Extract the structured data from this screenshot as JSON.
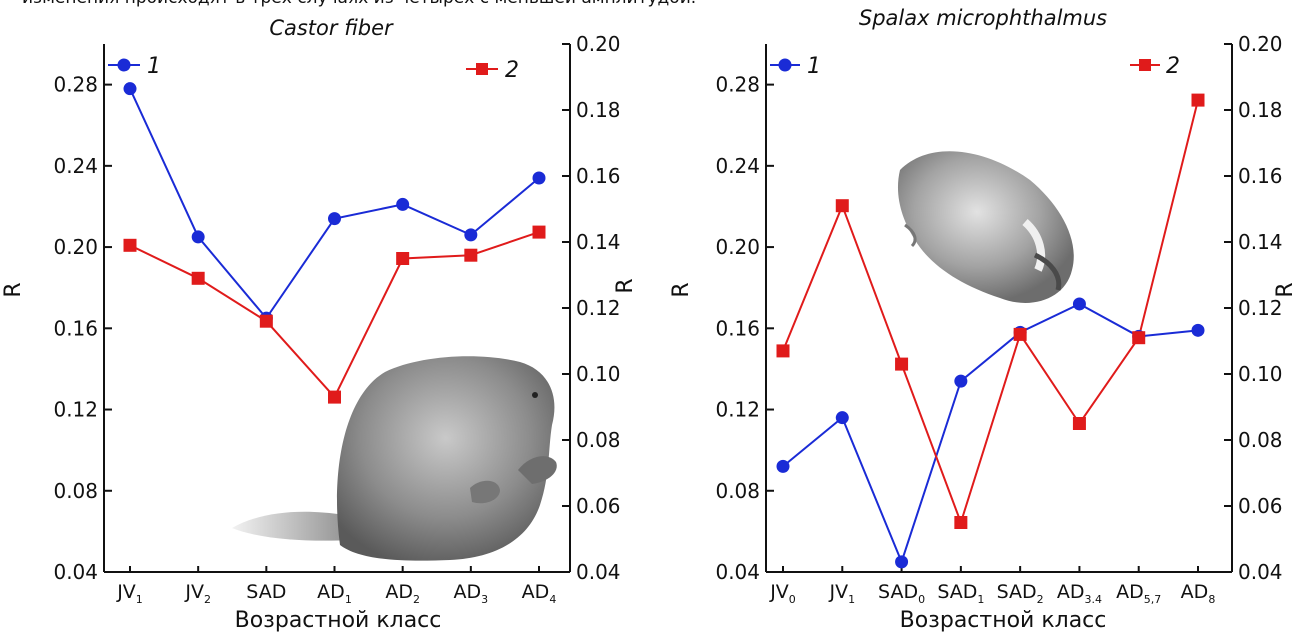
{
  "caption": "изменения происходят в трех случаях из четырех с меньшей амплитудой.",
  "colors": {
    "series1": "#1a2bd6",
    "series2": "#e01b1b",
    "axis": "#111111"
  },
  "chart_data": [
    {
      "type": "line",
      "title": "Castor fiber",
      "xlabel": "Возрастной класс",
      "ylabel": "R",
      "y2label": "R",
      "categories": [
        {
          "base": "JV",
          "sub": "1"
        },
        {
          "base": "JV",
          "sub": "2"
        },
        {
          "base": "SAD",
          "sub": ""
        },
        {
          "base": "AD",
          "sub": "1"
        },
        {
          "base": "AD",
          "sub": "2"
        },
        {
          "base": "AD",
          "sub": "3"
        },
        {
          "base": "AD",
          "sub": "4"
        }
      ],
      "ylim": [
        0.04,
        0.3
      ],
      "y2lim": [
        0.04,
        0.2
      ],
      "yticks": [
        "0.04",
        "0.08",
        "0.12",
        "0.16",
        "0.20",
        "0.24",
        "0.28"
      ],
      "y2ticks": [
        "0.04",
        "0.06",
        "0.08",
        "0.10",
        "0.12",
        "0.14",
        "0.16",
        "0.18",
        "0.20"
      ],
      "series": [
        {
          "name": "1",
          "axis": "left",
          "marker": "circle",
          "color": "#1a2bd6",
          "values": [
            0.278,
            0.205,
            0.165,
            0.214,
            0.221,
            0.206,
            0.234
          ]
        },
        {
          "name": "2",
          "axis": "right",
          "marker": "square",
          "color": "#e01b1b",
          "values": [
            0.139,
            0.129,
            0.116,
            0.093,
            0.135,
            0.136,
            0.143
          ]
        }
      ],
      "legend": "top",
      "decoration": "beaver-illustration"
    },
    {
      "type": "line",
      "title": "Spalax microphthalmus",
      "xlabel": "Возрастной класс",
      "ylabel": "R",
      "y2label": "R",
      "categories": [
        {
          "base": "JV",
          "sub": "0"
        },
        {
          "base": "JV",
          "sub": "1"
        },
        {
          "base": "SAD",
          "sub": "0"
        },
        {
          "base": "SAD",
          "sub": "1"
        },
        {
          "base": "SAD",
          "sub": "2"
        },
        {
          "base": "AD",
          "sub": "3.4"
        },
        {
          "base": "AD",
          "sub": "5,7"
        },
        {
          "base": "AD",
          "sub": "8"
        }
      ],
      "ylim": [
        0.04,
        0.3
      ],
      "y2lim": [
        0.04,
        0.2
      ],
      "yticks": [
        "0.04",
        "0.08",
        "0.12",
        "0.16",
        "0.20",
        "0.24",
        "0.28"
      ],
      "y2ticks": [
        "0.04",
        "0.06",
        "0.08",
        "0.10",
        "0.12",
        "0.14",
        "0.16",
        "0.18",
        "0.20"
      ],
      "series": [
        {
          "name": "1",
          "axis": "left",
          "marker": "circle",
          "color": "#1a2bd6",
          "values": [
            0.092,
            0.116,
            0.045,
            0.134,
            0.158,
            0.172,
            0.156,
            0.159
          ]
        },
        {
          "name": "2",
          "axis": "right",
          "marker": "square",
          "color": "#e01b1b",
          "values": [
            0.107,
            0.151,
            0.103,
            0.055,
            0.112,
            0.085,
            0.111,
            0.183
          ]
        }
      ],
      "legend": "top",
      "decoration": "mole-rat-illustration"
    }
  ]
}
